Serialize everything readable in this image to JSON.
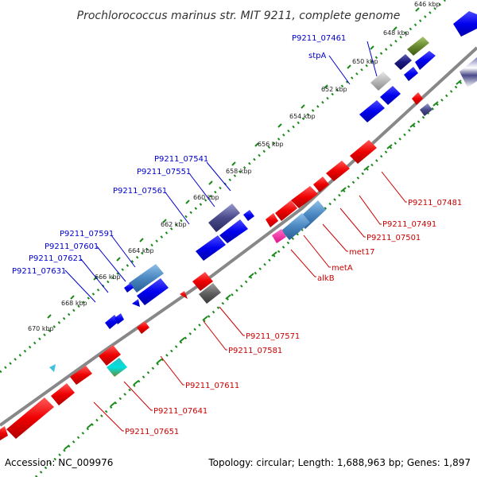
{
  "title": "Prochlorococcus marinus str. MIT 9211, complete genome",
  "footer": {
    "accession": "Accession: NC_009976",
    "info": "Topology: circular; Length: 1,688,963 bp; Genes: 1,897"
  },
  "ticks": [
    "646 kbp",
    "648 kbp",
    "650 kbp",
    "652 kbp",
    "654 kbp",
    "656 kbp",
    "658 kbp",
    "660 kbp",
    "662 kbp",
    "664 kbp",
    "666 kbp",
    "668 kbp",
    "670 kbp"
  ],
  "labels_forward": [
    "P9211_07461",
    "stpA",
    "P9211_07541",
    "P9211_07551",
    "P9211_07561",
    "P9211_07591",
    "P9211_07601",
    "P9211_07621",
    "P9211_07631"
  ],
  "labels_reverse": [
    "P9211_07481",
    "P9211_07491",
    "P9211_07501",
    "met17",
    "metA",
    "alkB",
    "P9211_07571",
    "P9211_07581",
    "P9211_07611",
    "P9211_07641",
    "P9211_07651"
  ],
  "colors": {
    "forward": "#0000ee",
    "reverse": "#ee0000",
    "backbone": "#888888",
    "dots": "#1a8a1a",
    "forward_label": "#0000cc",
    "reverse_label": "#cc0000"
  }
}
